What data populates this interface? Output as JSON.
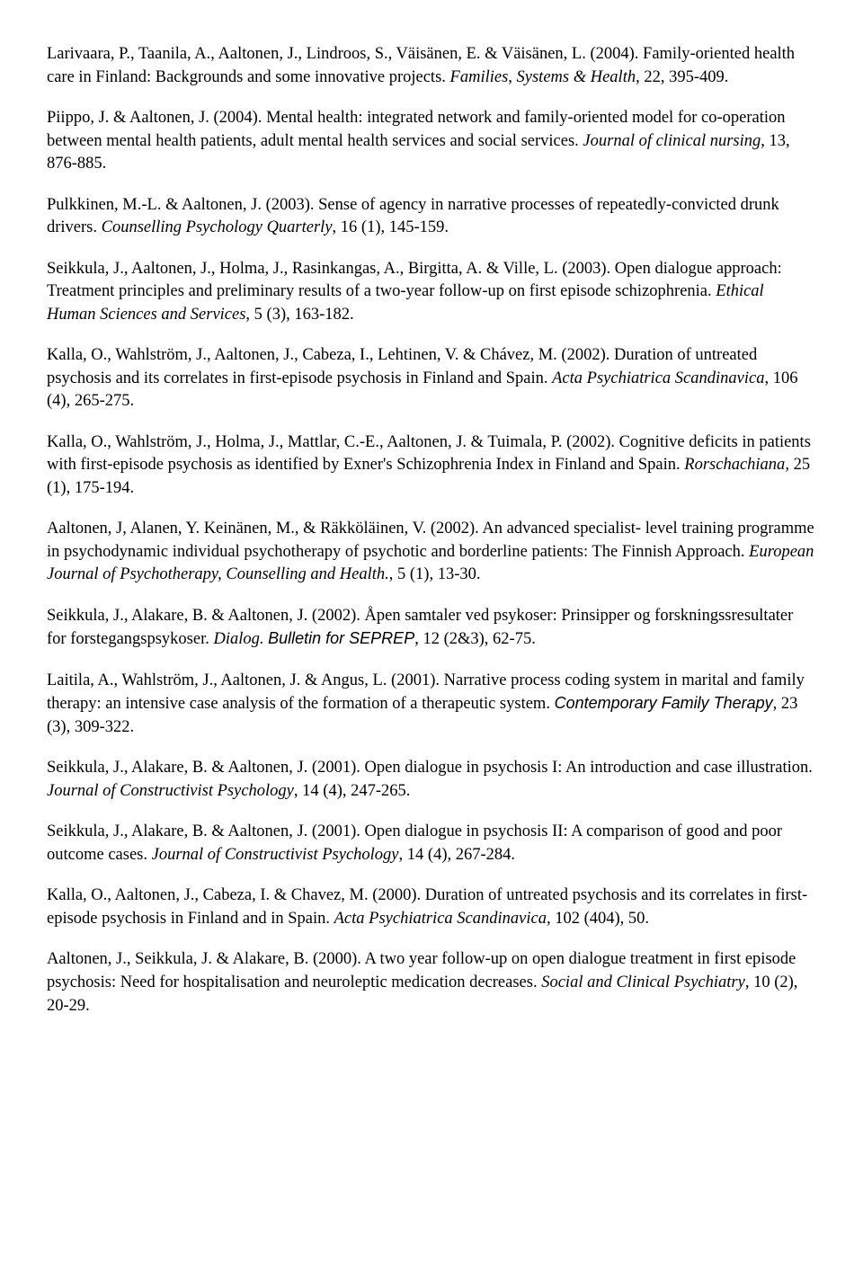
{
  "refs": [
    {
      "html": "Larivaara, P., Taanila, A., Aaltonen, J., Lindroos, S., Väisänen, E. & Väisänen, L. (2004). Family-oriented health care in Finland: Backgrounds and some innovative projects. <span class=\"italic\">Families, Systems & Health</span>, 22, 395-409."
    },
    {
      "html": "Piippo, J. & Aaltonen, J. (2004). Mental health: integrated network and family-oriented model for co-operation between mental health patients, adult mental health services and social services. <span class=\"italic\">Journal of clinical nursing</span>, 13, 876-885."
    },
    {
      "html": "Pulkkinen, M.-L. & Aaltonen, J. (2003). Sense of agency in narrative processes of repeatedly-convicted drunk drivers. <span class=\"italic\">Counselling Psychology Quarterly</span>, 16 (1), 145-159."
    },
    {
      "html": "Seikkula, J., Aaltonen, J., Holma, J., Rasinkangas, A., Birgitta, A. & Ville, L. (2003). Open dialogue approach: Treatment principles and preliminary results of a two-year follow-up on first episode schizophrenia. <span class=\"italic\">Ethical Human Sciences and Services</span>, 5 (3), 163-182."
    },
    {
      "html": "Kalla, O., Wahlström, J., Aaltonen, J., Cabeza, I., Lehtinen, V. & Chávez, M. (2002). Duration of untreated psychosis and its correlates in first-episode psychosis in Finland and Spain. <span class=\"italic\">Acta Psychiatrica Scandinavica</span>, 106 (4), 265-275."
    },
    {
      "html": "Kalla, O., Wahlström, J., Holma, J., Mattlar, C.-E., Aaltonen, J. & Tuimala, P. (2002). Cognitive deficits in patients with first-episode psychosis as identified by Exner's Schizophrenia Index in Finland and Spain. <span class=\"italic\">Rorschachiana</span>, 25 (1), 175-194."
    },
    {
      "html": "Aaltonen, J, Alanen, Y. Keinänen, M., & Räkköläinen, V. (2002). An advanced specialist- level training programme in psychodynamic individual psychotherapy of psychotic and borderline patients: The Finnish Approach. <span class=\"italic\">European Journal of Psychotherapy, Counselling and Health.</span>, 5 (1), 13-30."
    },
    {
      "html": "Seikkula, J., Alakare, B. & Aaltonen, J. (2002). Åpen samtaler ved psykoser: Prinsipper og forskningssresultater for forstegangspsykoser. <span class=\"italic\">Dialog. </span><span class=\"italic sans\">Bulletin for SEPREP</span>, 12 (2&3), 62-75."
    },
    {
      "html": "Laitila, A., Wahlström, J., Aaltonen, J. & Angus, L. (2001). Narrative process coding system in marital and family therapy: an intensive case analysis of the formation of a therapeutic system. <span class=\"italic sans\">Contemporary Family Therapy</span>, 23 (3), 309-322."
    },
    {
      "html": "Seikkula, J., Alakare, B. & Aaltonen, J. (2001). Open dialogue in psychosis I: An introduction and case illustration. <span class=\"italic\">Journal of Constructivist Psychology</span>, 14 (4), 247-265."
    },
    {
      "html": "Seikkula, J., Alakare, B. & Aaltonen, J. (2001). Open dialogue in psychosis II: A comparison of good and poor outcome cases. <span class=\"italic\">Journal of Constructivist Psychology</span>, 14 (4), 267-284."
    },
    {
      "html": "Kalla, O., Aaltonen, J., Cabeza, I. & Chavez, M. (2000). Duration of untreated psychosis and its correlates in first-episode psychosis in Finland and in Spain. <span class=\"italic\">Acta Psychiatrica Scandinavica</span>, 102 (404), 50."
    },
    {
      "html": "Aaltonen, J., Seikkula, J. & Alakare, B. (2000). A two year follow-up on open dialogue treatment in first episode psychosis: Need for hospitalisation and neuroleptic medication decreases. <span class=\"italic\">Social and Clinical Psychiatry</span>, 10 (2), 20-29."
    }
  ]
}
